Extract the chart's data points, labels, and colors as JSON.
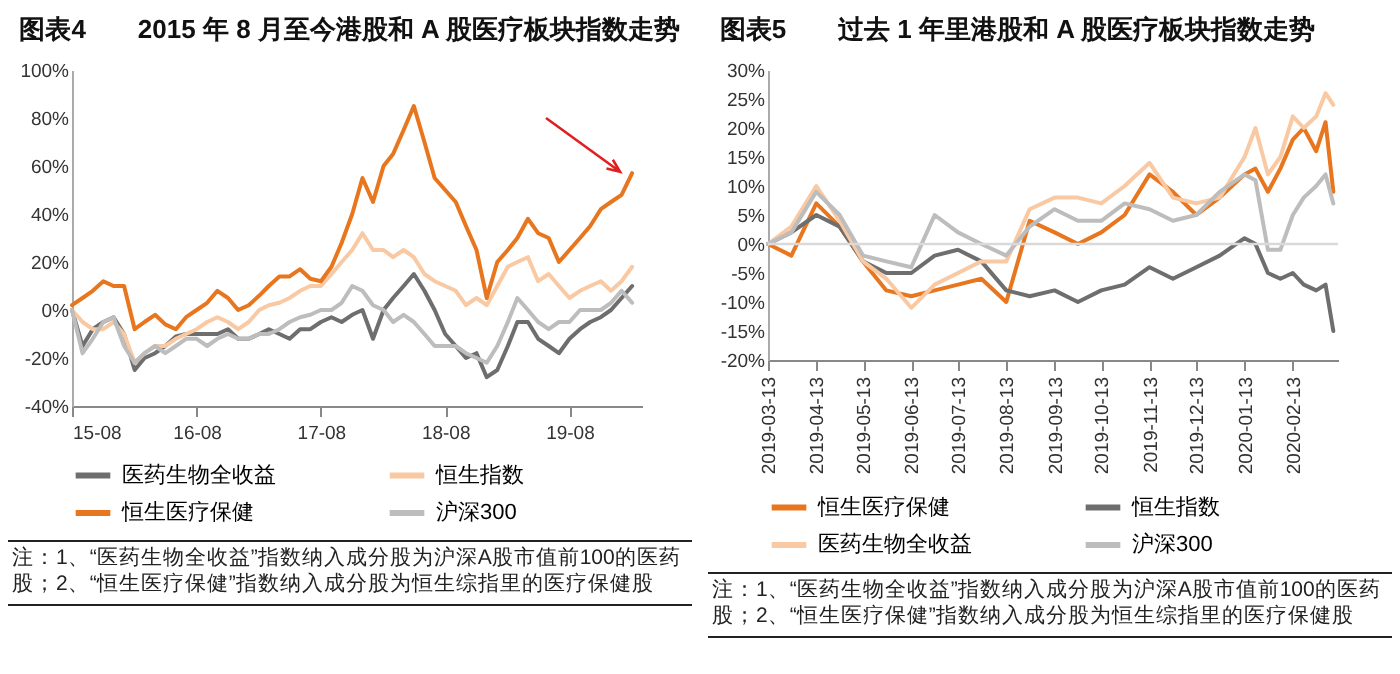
{
  "chart_data": [
    {
      "type": "line",
      "title": "图表4　　2015 年 8 月至今港股和 A 股医疗板块指数走势",
      "x": [
        "2015-08",
        "2015-09",
        "2015-10",
        "2015-11",
        "2015-12",
        "2016-01",
        "2016-02",
        "2016-03",
        "2016-04",
        "2016-05",
        "2016-06",
        "2016-07",
        "2016-08",
        "2016-09",
        "2016-10",
        "2016-11",
        "2016-12",
        "2017-01",
        "2017-02",
        "2017-03",
        "2017-04",
        "2017-05",
        "2017-06",
        "2017-07",
        "2017-08",
        "2017-09",
        "2017-10",
        "2017-11",
        "2017-12",
        "2018-01",
        "2018-02",
        "2018-03",
        "2018-04",
        "2018-05",
        "2018-06",
        "2018-07",
        "2018-08",
        "2018-09",
        "2018-10",
        "2018-11",
        "2018-12",
        "2019-01",
        "2019-02",
        "2019-03",
        "2019-04",
        "2019-05",
        "2019-06",
        "2019-07",
        "2019-08",
        "2019-09",
        "2019-10",
        "2019-11",
        "2019-12",
        "2020-01",
        "2020-02"
      ],
      "series": [
        {
          "name": "医药生物全收益",
          "color": "#6e6e6e",
          "values": [
            0,
            -15,
            -8,
            -5,
            -3,
            -10,
            -25,
            -20,
            -18,
            -15,
            -11,
            -10,
            -10,
            -10,
            -10,
            -8,
            -12,
            -12,
            -10,
            -8,
            -10,
            -12,
            -8,
            -8,
            -5,
            -3,
            -5,
            -2,
            0,
            -12,
            0,
            5,
            10,
            15,
            8,
            0,
            -10,
            -15,
            -20,
            -18,
            -28,
            -25,
            -15,
            -5,
            -5,
            -12,
            -15,
            -18,
            -12,
            -8,
            -5,
            -3,
            0,
            5,
            10
          ]
        },
        {
          "name": "恒生指数",
          "color": "#f9c9a3",
          "values": [
            0,
            -5,
            -8,
            -8,
            -5,
            -10,
            -22,
            -18,
            -15,
            -15,
            -12,
            -10,
            -8,
            -5,
            -3,
            -5,
            -8,
            -5,
            0,
            2,
            3,
            5,
            8,
            10,
            10,
            15,
            20,
            25,
            32,
            25,
            25,
            22,
            25,
            22,
            15,
            12,
            10,
            8,
            2,
            5,
            2,
            10,
            18,
            20,
            22,
            12,
            15,
            10,
            5,
            8,
            10,
            12,
            8,
            12,
            18
          ]
        },
        {
          "name": "恒生医疗保健",
          "color": "#e8761e",
          "values": [
            2,
            5,
            8,
            12,
            10,
            10,
            -8,
            -5,
            -2,
            -6,
            -8,
            -3,
            0,
            3,
            8,
            5,
            0,
            2,
            6,
            10,
            14,
            14,
            17,
            13,
            12,
            18,
            28,
            40,
            55,
            45,
            60,
            65,
            75,
            85,
            70,
            55,
            50,
            45,
            35,
            25,
            5,
            20,
            25,
            30,
            38,
            32,
            30,
            20,
            25,
            30,
            35,
            42,
            45,
            48,
            57
          ]
        },
        {
          "name": "沪深300",
          "color": "#bdbdbd",
          "values": [
            0,
            -18,
            -12,
            -5,
            -3,
            -15,
            -22,
            -18,
            -15,
            -18,
            -15,
            -12,
            -12,
            -15,
            -12,
            -10,
            -12,
            -12,
            -10,
            -10,
            -8,
            -5,
            -3,
            -2,
            0,
            0,
            3,
            10,
            8,
            2,
            0,
            -5,
            -2,
            -5,
            -10,
            -15,
            -15,
            -15,
            -18,
            -20,
            -22,
            -15,
            -5,
            5,
            0,
            -5,
            -8,
            -5,
            -5,
            0,
            0,
            0,
            3,
            8,
            3
          ]
        }
      ],
      "xlim": [
        "2015-08",
        "2020-03"
      ],
      "xticks": [
        {
          "value": "2015-08",
          "label": "15-08"
        },
        {
          "value": "2016-08",
          "label": "16-08"
        },
        {
          "value": "2017-08",
          "label": "17-08"
        },
        {
          "value": "2018-08",
          "label": "18-08"
        },
        {
          "value": "2019-08",
          "label": "19-08"
        }
      ],
      "ylim": [
        -40,
        100
      ],
      "yticks": [
        {
          "value": -40,
          "label": "-40%"
        },
        {
          "value": -20,
          "label": "-20%"
        },
        {
          "value": 0,
          "label": "0%"
        },
        {
          "value": 20,
          "label": "20%"
        },
        {
          "value": 40,
          "label": "40%"
        },
        {
          "value": 60,
          "label": "60%"
        },
        {
          "value": 80,
          "label": "80%"
        },
        {
          "value": 100,
          "label": "100%"
        }
      ],
      "grid": false,
      "legend": "bottom",
      "annotations": [
        "注：1、“医药生物全收益”指数纳入成分股为沪深A股市值前100的医药股；2、“恒生医疗保健”指数纳入成分股为恒生综指里的医疗保健股"
      ]
    },
    {
      "type": "line",
      "title": "图表5　　过去 1 年里港股和 A 股医疗板块指数走势",
      "x": [
        "2019-03-13",
        "2019-03-28",
        "2019-04-13",
        "2019-04-28",
        "2019-05-13",
        "2019-05-28",
        "2019-06-13",
        "2019-06-28",
        "2019-07-13",
        "2019-07-28",
        "2019-08-13",
        "2019-08-28",
        "2019-09-13",
        "2019-09-28",
        "2019-10-13",
        "2019-10-28",
        "2019-11-13",
        "2019-11-28",
        "2019-12-13",
        "2019-12-28",
        "2020-01-13",
        "2020-01-20",
        "2020-01-28",
        "2020-02-05",
        "2020-02-13",
        "2020-02-20",
        "2020-02-28",
        "2020-03-05",
        "2020-03-10"
      ],
      "series": [
        {
          "name": "恒生医疗保健",
          "color": "#e8761e",
          "values": [
            0,
            -2,
            7,
            3,
            -3,
            -8,
            -9,
            -8,
            -7,
            -6,
            -10,
            4,
            2,
            0,
            2,
            5,
            12,
            9,
            5,
            8,
            12,
            13,
            9,
            13,
            18,
            20,
            16,
            21,
            9
          ]
        },
        {
          "name": "恒生指数",
          "color": "#6e6e6e",
          "values": [
            0,
            2,
            5,
            3,
            -3,
            -5,
            -5,
            -2,
            -1,
            -3,
            -8,
            -9,
            -8,
            -10,
            -8,
            -7,
            -4,
            -6,
            -4,
            -2,
            1,
            0,
            -5,
            -6,
            -5,
            -7,
            -8,
            -7,
            -15
          ]
        },
        {
          "name": "医药生物全收益",
          "color": "#f9c9a3",
          "values": [
            0,
            3,
            10,
            4,
            -3,
            -6,
            -11,
            -7,
            -5,
            -3,
            -3,
            6,
            8,
            8,
            7,
            10,
            14,
            8,
            7,
            8,
            15,
            20,
            12,
            15,
            22,
            20,
            22,
            26,
            24
          ]
        },
        {
          "name": "沪深300",
          "color": "#bdbdbd",
          "values": [
            0,
            2,
            9,
            5,
            -2,
            -3,
            -4,
            5,
            2,
            0,
            -2,
            3,
            6,
            4,
            4,
            7,
            6,
            4,
            5,
            9,
            12,
            11,
            -1,
            -1,
            5,
            8,
            10,
            12,
            7
          ]
        }
      ],
      "xlim": [
        "2019-03-13",
        "2020-03-13"
      ],
      "xticks": [
        "2019-03-13",
        "2019-04-13",
        "2019-05-13",
        "2019-06-13",
        "2019-07-13",
        "2019-08-13",
        "2019-09-13",
        "2019-10-13",
        "2019-11-13",
        "2019-12-13",
        "2020-01-13",
        "2020-02-13"
      ],
      "ylim": [
        -20,
        30
      ],
      "yticks": [
        {
          "value": -20,
          "label": "-20%"
        },
        {
          "value": -15,
          "label": "-15%"
        },
        {
          "value": -10,
          "label": "-10%"
        },
        {
          "value": -5,
          "label": "-5%"
        },
        {
          "value": 0,
          "label": "0%"
        },
        {
          "value": 5,
          "label": "5%"
        },
        {
          "value": 10,
          "label": "10%"
        },
        {
          "value": 15,
          "label": "15%"
        },
        {
          "value": 20,
          "label": "20%"
        },
        {
          "value": 25,
          "label": "25%"
        },
        {
          "value": 30,
          "label": "30%"
        }
      ],
      "ref_lines": [
        {
          "axis": "y",
          "value": 0,
          "color": "#d9d9d9"
        }
      ],
      "grid": false,
      "legend": "bottom",
      "annotations": [
        "注：1、“医药生物全收益”指数纳入成分股为沪深A股市值前100的医药股；2、“恒生医疗保健”指数纳入成分股为恒生综指里的医疗保健股"
      ]
    }
  ]
}
